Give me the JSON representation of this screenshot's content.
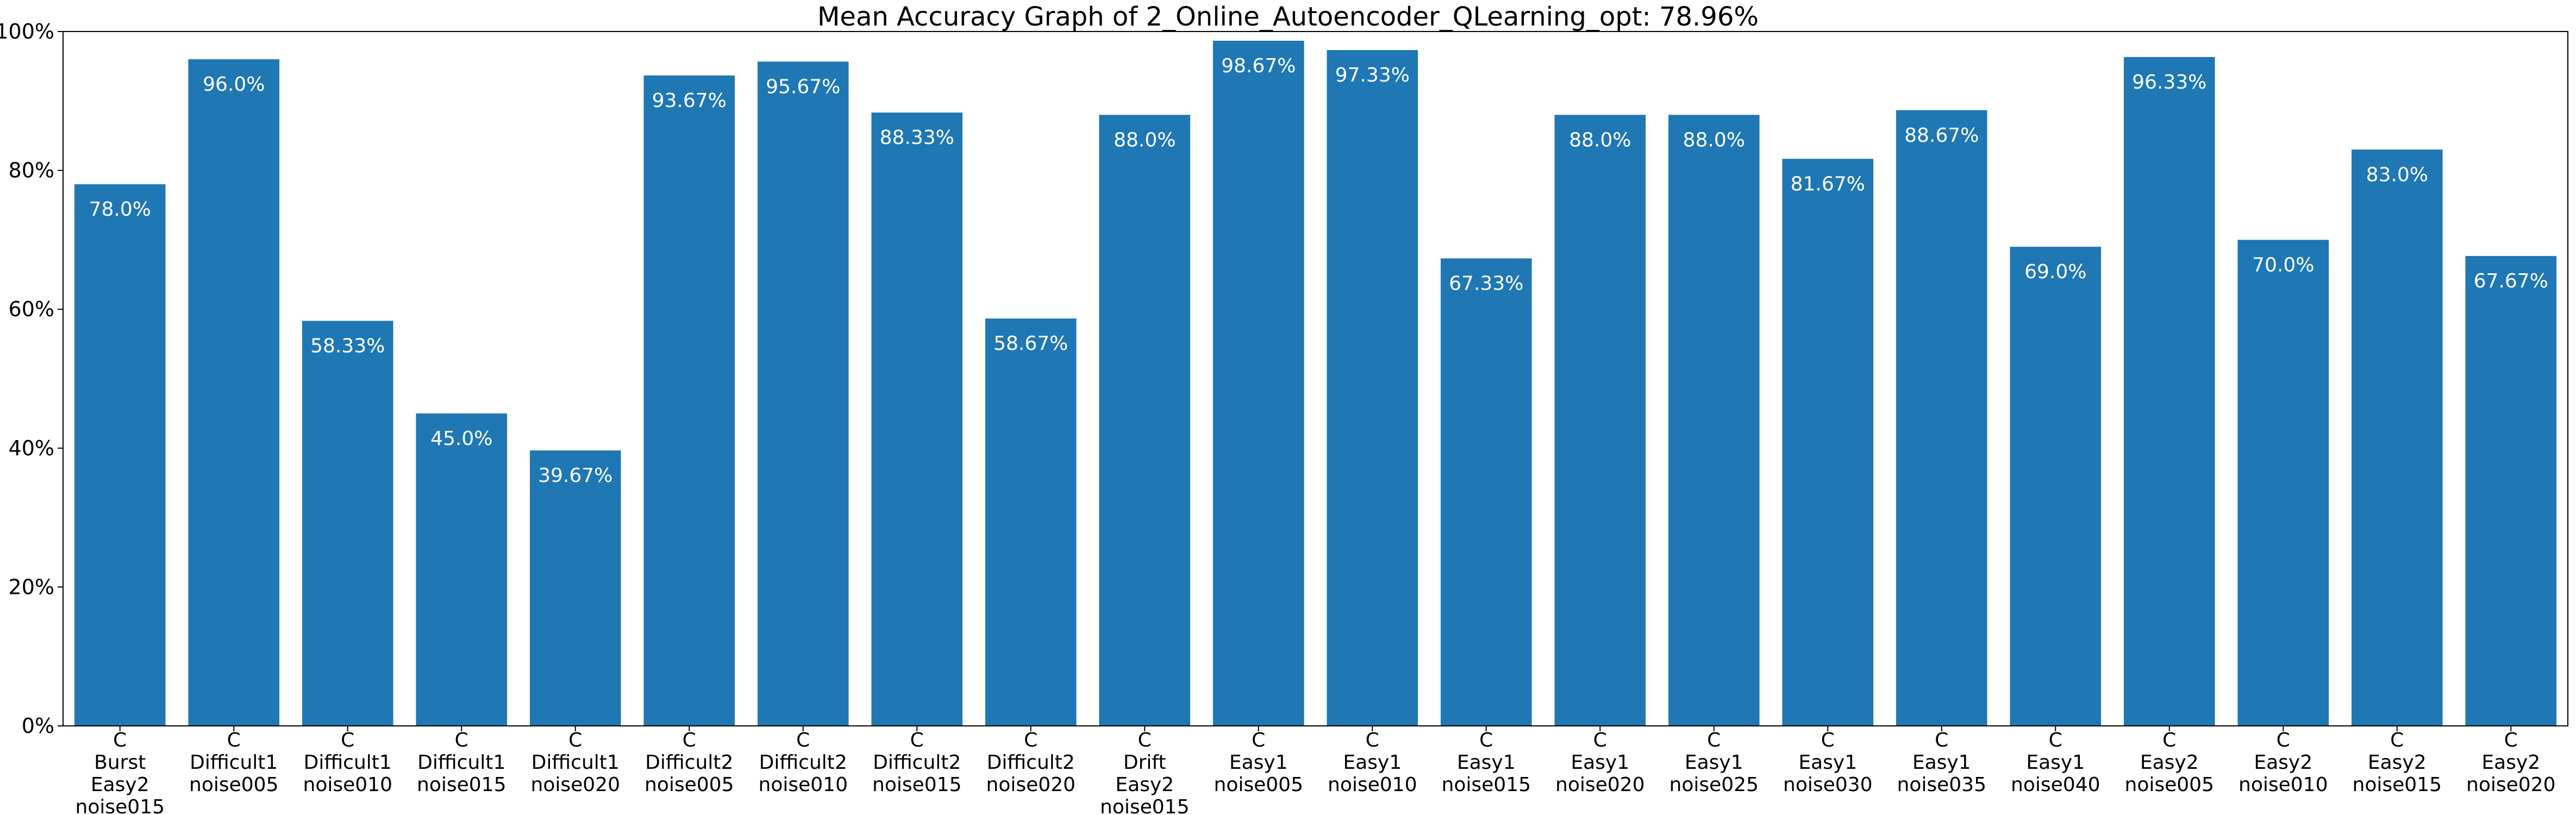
{
  "chart_data": {
    "type": "bar",
    "title": "Mean Accuracy Graph of 2_Online_Autoencoder_QLearning_opt: 78.96%",
    "xlabel": "",
    "ylabel": "",
    "ylim": [
      0,
      100
    ],
    "yticks": [
      0,
      20,
      40,
      60,
      80,
      100
    ],
    "ytick_labels": [
      "0%",
      "20%",
      "40%",
      "60%",
      "80%",
      "100%"
    ],
    "grid": false,
    "bar_color": "#1f77b4",
    "label_color": "#ffffff",
    "categories": [
      [
        "C",
        "Burst",
        "Easy2",
        "noise015"
      ],
      [
        "C",
        "Difficult1",
        "noise005"
      ],
      [
        "C",
        "Difficult1",
        "noise010"
      ],
      [
        "C",
        "Difficult1",
        "noise015"
      ],
      [
        "C",
        "Difficult1",
        "noise020"
      ],
      [
        "C",
        "Difficult2",
        "noise005"
      ],
      [
        "C",
        "Difficult2",
        "noise010"
      ],
      [
        "C",
        "Difficult2",
        "noise015"
      ],
      [
        "C",
        "Difficult2",
        "noise020"
      ],
      [
        "C",
        "Drift",
        "Easy2",
        "noise015"
      ],
      [
        "C",
        "Easy1",
        "noise005"
      ],
      [
        "C",
        "Easy1",
        "noise010"
      ],
      [
        "C",
        "Easy1",
        "noise015"
      ],
      [
        "C",
        "Easy1",
        "noise020"
      ],
      [
        "C",
        "Easy1",
        "noise025"
      ],
      [
        "C",
        "Easy1",
        "noise030"
      ],
      [
        "C",
        "Easy1",
        "noise035"
      ],
      [
        "C",
        "Easy1",
        "noise040"
      ],
      [
        "C",
        "Easy2",
        "noise005"
      ],
      [
        "C",
        "Easy2",
        "noise010"
      ],
      [
        "C",
        "Easy2",
        "noise015"
      ],
      [
        "C",
        "Easy2",
        "noise020"
      ]
    ],
    "values": [
      78.0,
      96.0,
      58.33,
      45.0,
      39.67,
      93.67,
      95.67,
      88.33,
      58.67,
      88.0,
      98.67,
      97.33,
      67.33,
      88.0,
      88.0,
      81.67,
      88.67,
      69.0,
      96.33,
      70.0,
      83.0,
      67.67
    ],
    "value_labels": [
      "78.0%",
      "96.0%",
      "58.33%",
      "45.0%",
      "39.67%",
      "93.67%",
      "95.67%",
      "88.33%",
      "58.67%",
      "88.0%",
      "98.67%",
      "97.33%",
      "67.33%",
      "88.0%",
      "88.0%",
      "81.67%",
      "88.67%",
      "69.0%",
      "96.33%",
      "70.0%",
      "83.0%",
      "67.67%"
    ]
  }
}
